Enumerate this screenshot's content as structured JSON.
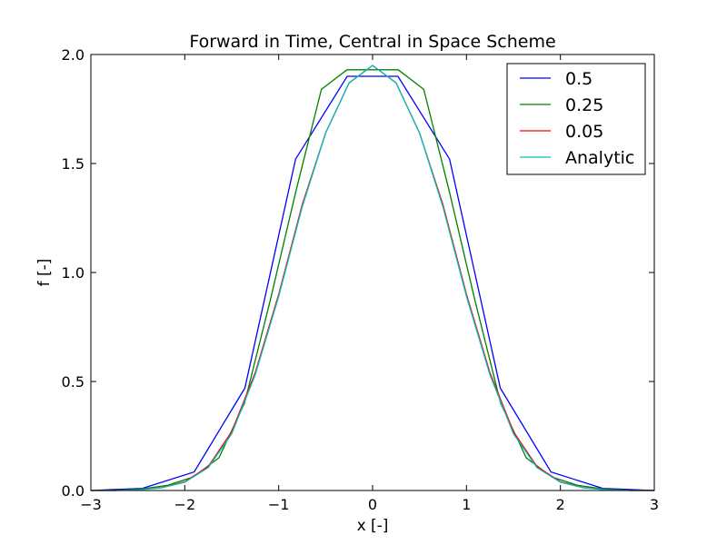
{
  "chart_data": {
    "type": "line",
    "title": "Forward in Time, Central in Space Scheme",
    "xlabel": "x [-]",
    "ylabel": "f [-]",
    "xlim": [
      -3,
      3
    ],
    "ylim": [
      0,
      2
    ],
    "xticks": [
      -3,
      -2,
      -1,
      0,
      1,
      2,
      3
    ],
    "xtick_labels": [
      "−3",
      "−2",
      "−1",
      "0",
      "1",
      "2",
      "3"
    ],
    "yticks": [
      0,
      0.5,
      1,
      1.5,
      2
    ],
    "ytick_labels": [
      "0.0",
      "0.5",
      "1.0",
      "1.5",
      "2.0"
    ],
    "grid": false,
    "legend_position": "top-right",
    "series": [
      {
        "name": "0.5",
        "color": "#0000ff",
        "x": [
          -3.0,
          -2.45,
          -1.9,
          -1.36,
          -0.82,
          -0.27,
          0.27,
          0.82,
          1.36,
          1.9,
          2.45,
          3.0
        ],
        "y": [
          0.0,
          0.01,
          0.085,
          0.47,
          1.52,
          1.9,
          1.9,
          1.52,
          0.47,
          0.085,
          0.01,
          0.0
        ]
      },
      {
        "name": "0.25",
        "color": "#008000",
        "x": [
          -3.0,
          -2.727,
          -2.455,
          -2.182,
          -1.909,
          -1.636,
          -1.364,
          -1.091,
          -0.818,
          -0.545,
          -0.273,
          0.0,
          0.273,
          0.545,
          0.818,
          1.091,
          1.364,
          1.636,
          1.909,
          2.182,
          2.455,
          2.727,
          3.0
        ],
        "y": [
          0.0,
          0.001,
          0.007,
          0.024,
          0.062,
          0.15,
          0.4,
          0.87,
          1.37,
          1.84,
          1.93,
          1.93,
          1.93,
          1.84,
          1.37,
          0.87,
          0.4,
          0.15,
          0.062,
          0.024,
          0.007,
          0.001,
          0.0
        ]
      },
      {
        "name": "0.05",
        "color": "#ff0000",
        "x": [
          -3.0,
          -2.75,
          -2.5,
          -2.25,
          -2.0,
          -1.75,
          -1.5,
          -1.25,
          -1.0,
          -0.75,
          -0.5,
          -0.25,
          0.0,
          0.25,
          0.5,
          0.75,
          1.0,
          1.25,
          1.5,
          1.75,
          2.0,
          2.25,
          2.5,
          2.75,
          3.0
        ],
        "y": [
          0.0,
          0.0,
          0.003,
          0.013,
          0.04,
          0.11,
          0.27,
          0.54,
          0.9,
          1.31,
          1.64,
          1.87,
          1.95,
          1.87,
          1.64,
          1.31,
          0.9,
          0.54,
          0.27,
          0.11,
          0.04,
          0.013,
          0.003,
          0.0,
          0.0
        ]
      },
      {
        "name": "Analytic",
        "color": "#00bfbf",
        "x": [
          -3.0,
          -2.75,
          -2.5,
          -2.25,
          -2.0,
          -1.75,
          -1.5,
          -1.25,
          -1.0,
          -0.75,
          -0.5,
          -0.25,
          0.0,
          0.25,
          0.5,
          0.75,
          1.0,
          1.25,
          1.5,
          1.75,
          2.0,
          2.25,
          2.5,
          2.75,
          3.0
        ],
        "y": [
          0.0,
          0.0,
          0.003,
          0.012,
          0.038,
          0.105,
          0.26,
          0.53,
          0.89,
          1.3,
          1.64,
          1.87,
          1.95,
          1.87,
          1.64,
          1.3,
          0.89,
          0.53,
          0.26,
          0.105,
          0.038,
          0.012,
          0.003,
          0.0,
          0.0
        ]
      }
    ]
  }
}
